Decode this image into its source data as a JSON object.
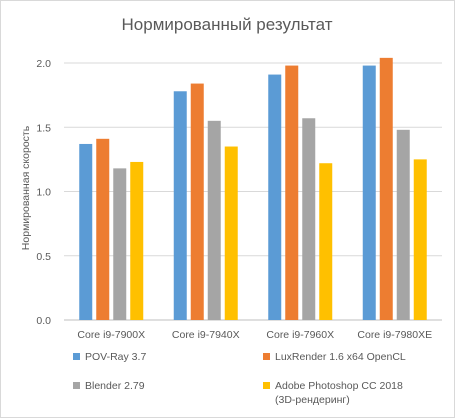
{
  "chart_data": {
    "type": "bar",
    "title": "Нормированный результат",
    "ylabel": "Нормированная скорость",
    "xlabel": "",
    "ylim": [
      0,
      2.0
    ],
    "yticks": [
      "0.0",
      "0.5",
      "1.0",
      "1.5",
      "2.0"
    ],
    "yticks_values": [
      0,
      0.5,
      1.0,
      1.5,
      2.0
    ],
    "grid": true,
    "legend_position": "bottom",
    "categories": [
      "Core i9-7900X",
      "Core i9-7940X",
      "Core i9-7960X",
      "Core i9-7980XE"
    ],
    "series": [
      {
        "name": "POV-Ray 3.7",
        "color": "#5b9bd5",
        "values": [
          1.37,
          1.78,
          1.91,
          1.98
        ]
      },
      {
        "name": "LuxRender 1.6 x64 OpenCL",
        "color": "#ed7d31",
        "values": [
          1.41,
          1.84,
          1.98,
          2.04
        ]
      },
      {
        "name": "Blender 2.79",
        "color": "#a5a5a5",
        "values": [
          1.18,
          1.55,
          1.57,
          1.48
        ]
      },
      {
        "name": "Adobe Photoshop CC 2018\n(3D-рендеринг)",
        "color": "#ffc000",
        "values": [
          1.23,
          1.35,
          1.22,
          1.25
        ]
      }
    ]
  }
}
